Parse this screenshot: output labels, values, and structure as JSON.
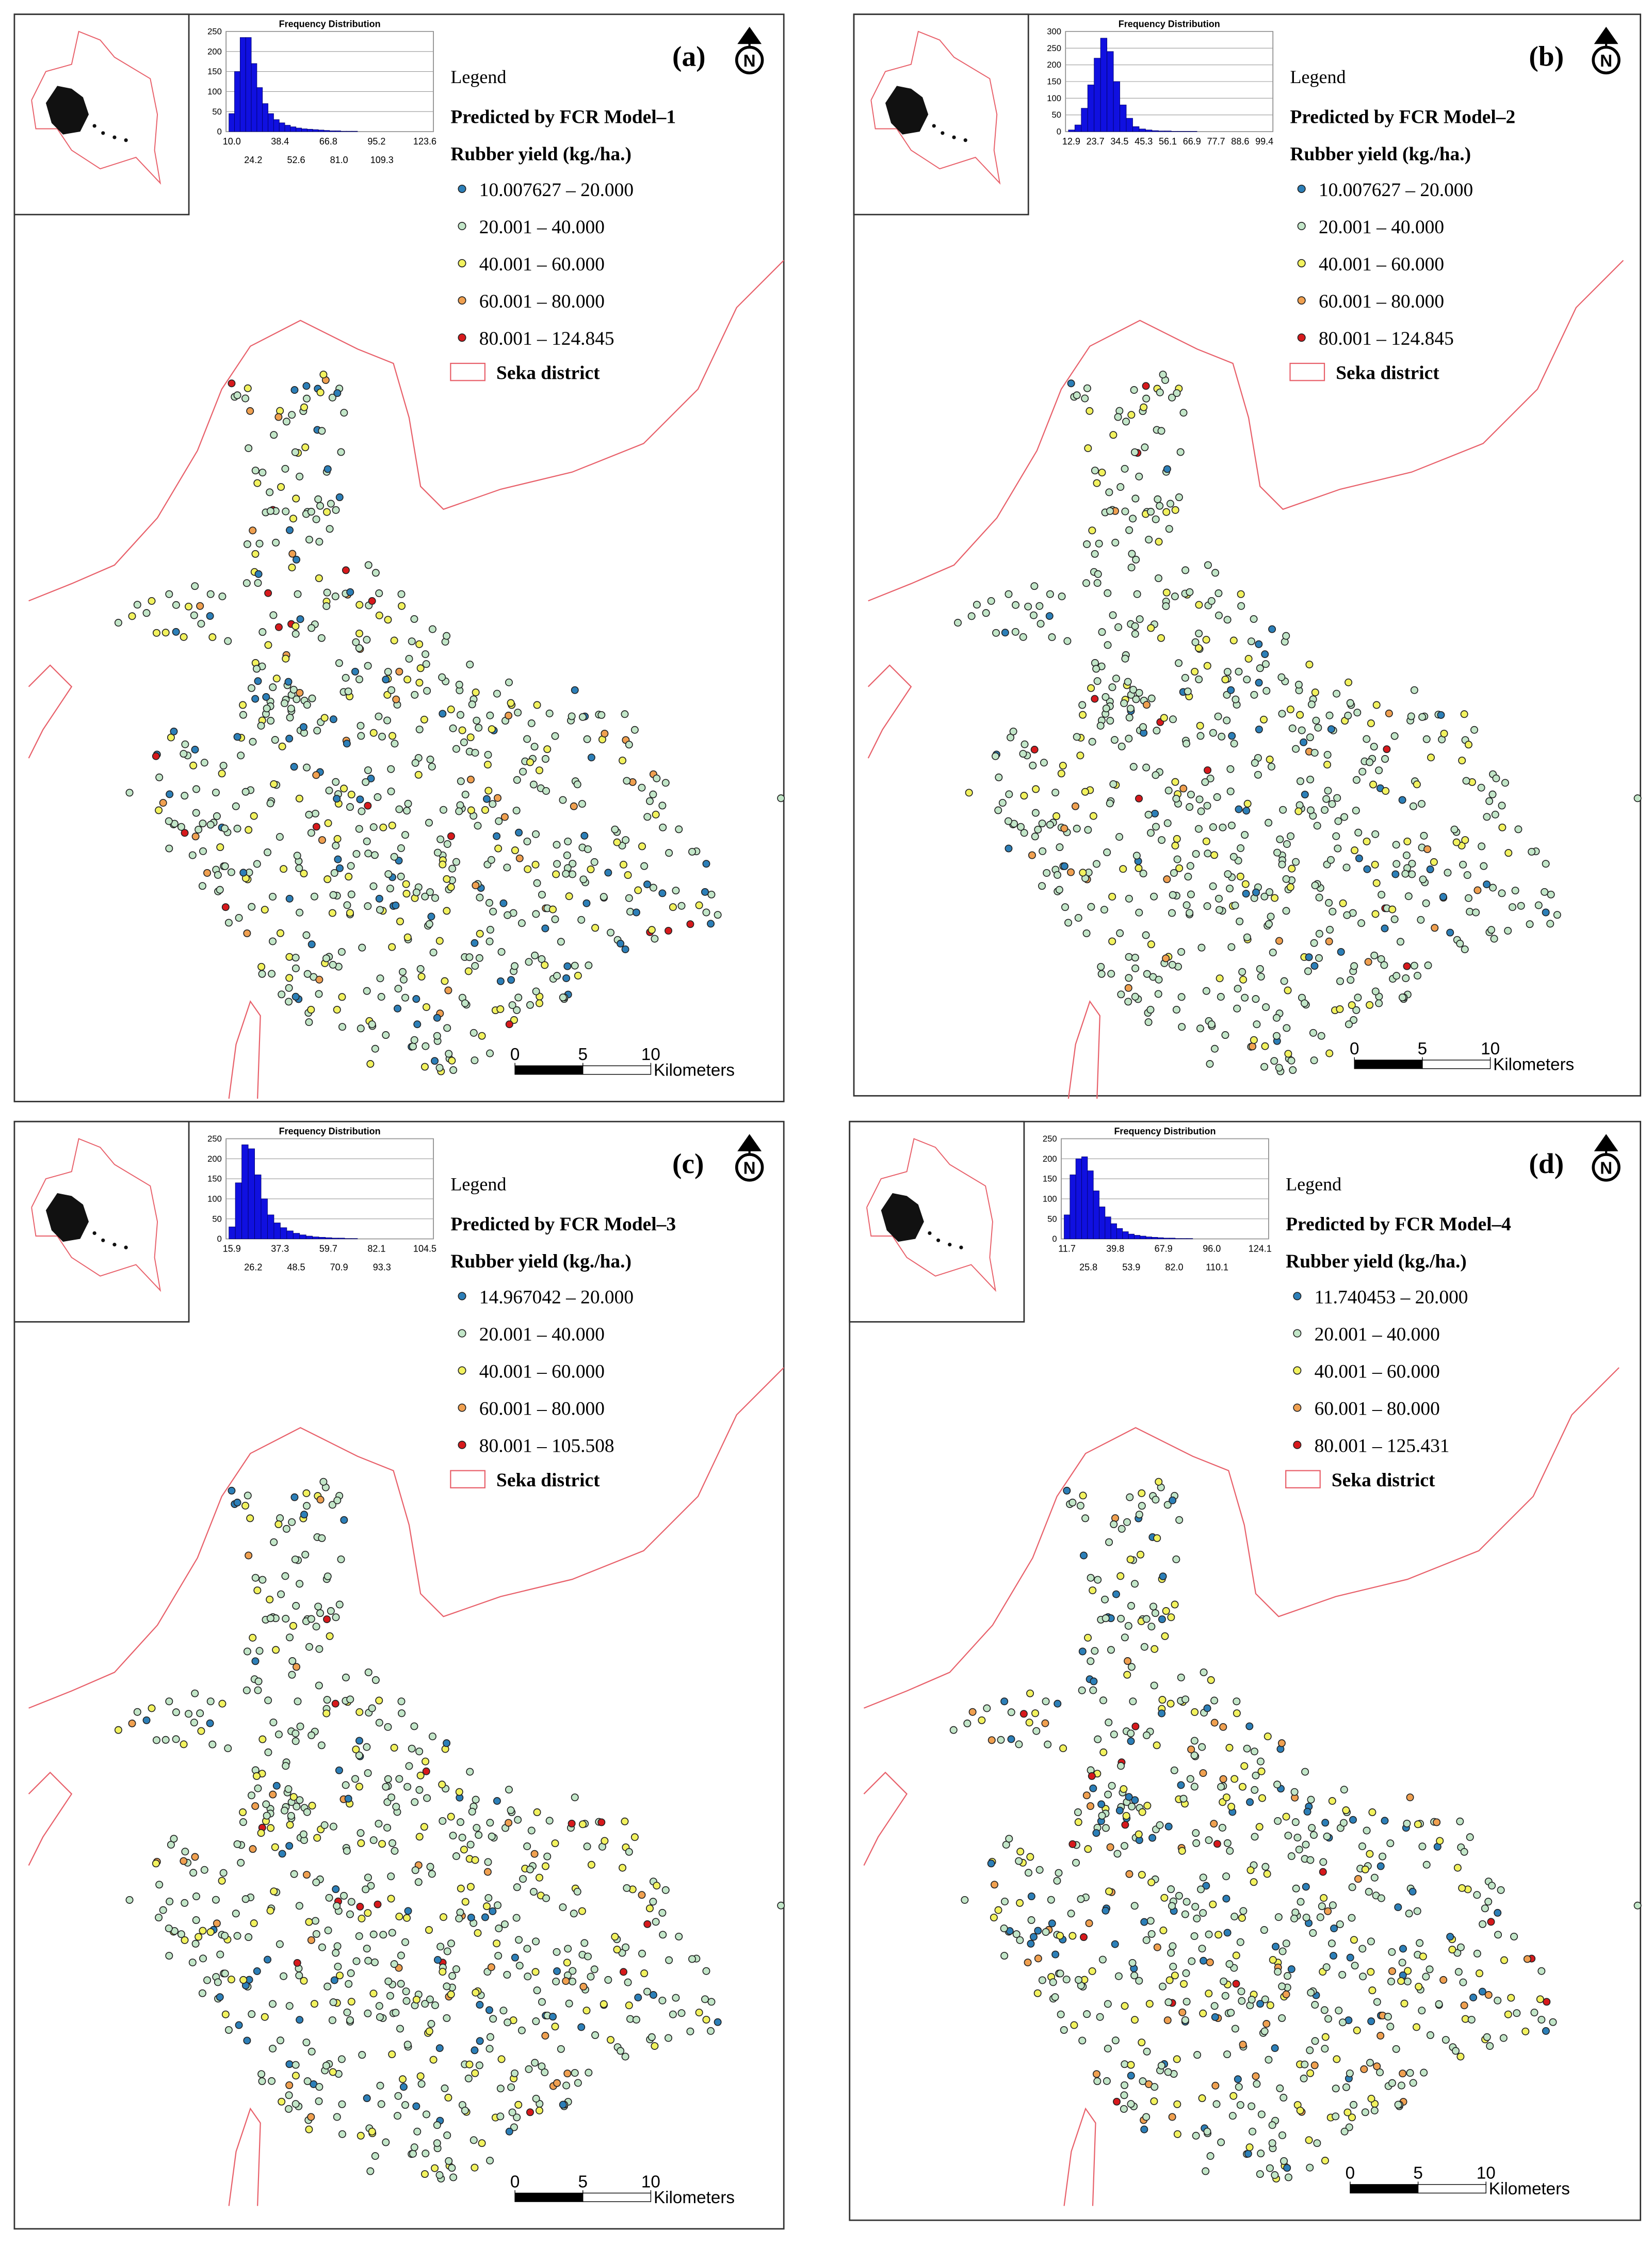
{
  "panels": [
    {
      "label": "(a)",
      "north": "N",
      "histogram": {
        "title": "Frequency Distribution",
        "yticks": [
          0,
          50,
          100,
          150,
          200,
          250
        ],
        "values": [
          45,
          150,
          235,
          235,
          170,
          110,
          70,
          45,
          30,
          22,
          16,
          12,
          9,
          7,
          6,
          5,
          4,
          3,
          2,
          2,
          1,
          1,
          1
        ],
        "xlabels_top": [
          "10.0",
          "38.4",
          "66.8",
          "95.2",
          "123.6"
        ],
        "xlabels_bottom": [
          "24.2",
          "52.6",
          "81.0",
          "109.3"
        ]
      },
      "legend": {
        "title": "Legend",
        "model": "Predicted by FCR Model–1",
        "variable": "Rubber yield (kg./ha.)",
        "classes": [
          {
            "label": "10.007627 – 20.000",
            "color": "#2c7fb8"
          },
          {
            "label": "20.001 – 40.000",
            "color": "#c2e6c8"
          },
          {
            "label": "40.001 – 60.000",
            "color": "#f2f25e"
          },
          {
            "label": "60.001 – 80.000",
            "color": "#f0a050"
          },
          {
            "label": "80.001 – 124.845",
            "color": "#d7191c"
          }
        ],
        "district": "Seka district"
      },
      "scale": {
        "ticks": [
          0,
          5,
          10
        ],
        "unit": "Kilometers"
      }
    },
    {
      "label": "(b)",
      "north": "N",
      "histogram": {
        "title": "Frequency Distribution",
        "yticks": [
          0,
          50,
          100,
          150,
          200,
          250,
          300
        ],
        "values": [
          5,
          20,
          70,
          140,
          220,
          280,
          240,
          150,
          80,
          40,
          15,
          8,
          5,
          3,
          2,
          2,
          1,
          1,
          1,
          1
        ],
        "xlabels_top": [
          "12.9",
          "23.7",
          "34.5",
          "45.3",
          "56.1",
          "66.9",
          "77.7",
          "88.6",
          "99.4"
        ]
      },
      "legend": {
        "title": "Legend",
        "model": "Predicted by FCR Model–2",
        "variable": "Rubber yield (kg./ha.)",
        "classes": [
          {
            "label": "10.007627 – 20.000",
            "color": "#2c7fb8"
          },
          {
            "label": "20.001 – 40.000",
            "color": "#c2e6c8"
          },
          {
            "label": "40.001 – 60.000",
            "color": "#f2f25e"
          },
          {
            "label": "60.001 – 80.000",
            "color": "#f0a050"
          },
          {
            "label": "80.001 – 124.845",
            "color": "#d7191c"
          }
        ],
        "district": "Seka district"
      },
      "scale": {
        "ticks": [
          0,
          5,
          10
        ],
        "unit": "Kilometers"
      }
    },
    {
      "label": "(c)",
      "north": "N",
      "histogram": {
        "title": "Frequency Distribution",
        "yticks": [
          0,
          50,
          100,
          150,
          200,
          250
        ],
        "values": [
          30,
          140,
          235,
          225,
          160,
          100,
          60,
          40,
          28,
          20,
          14,
          10,
          7,
          5,
          4,
          3,
          2,
          2,
          1,
          1
        ],
        "xlabels_top": [
          "15.9",
          "37.3",
          "59.7",
          "82.1",
          "104.5"
        ],
        "xlabels_bottom": [
          "26.2",
          "48.5",
          "70.9",
          "93.3"
        ]
      },
      "legend": {
        "title": "Legend",
        "model": "Predicted by FCR Model–3",
        "variable": "Rubber yield (kg./ha.)",
        "classes": [
          {
            "label": "14.967042 – 20.000",
            "color": "#2c7fb8"
          },
          {
            "label": "20.001 – 40.000",
            "color": "#c2e6c8"
          },
          {
            "label": "40.001 – 60.000",
            "color": "#f2f25e"
          },
          {
            "label": "60.001 – 80.000",
            "color": "#f0a050"
          },
          {
            "label": "80.001 – 105.508",
            "color": "#d7191c"
          }
        ],
        "district": "Seka district"
      },
      "scale": {
        "ticks": [
          0,
          5,
          10
        ],
        "unit": "Kilometers"
      }
    },
    {
      "label": "(d)",
      "north": "N",
      "histogram": {
        "title": "Frequency Distribution",
        "yticks": [
          0,
          50,
          100,
          150,
          200,
          250
        ],
        "values": [
          60,
          160,
          200,
          205,
          170,
          120,
          80,
          55,
          38,
          26,
          18,
          12,
          9,
          7,
          5,
          4,
          3,
          2,
          2,
          1,
          1,
          1
        ],
        "xlabels_top": [
          "11.7",
          "39.8",
          "67.9",
          "96.0",
          "124.1"
        ],
        "xlabels_bottom": [
          "25.8",
          "53.9",
          "82.0",
          "110.1"
        ]
      },
      "legend": {
        "title": "Legend",
        "model": "Predicted by FCR Model–4",
        "variable": "Rubber yield (kg./ha.)",
        "classes": [
          {
            "label": "11.740453 – 20.000",
            "color": "#2c7fb8"
          },
          {
            "label": "20.001 – 40.000",
            "color": "#c2e6c8"
          },
          {
            "label": "40.001 – 60.000",
            "color": "#f2f25e"
          },
          {
            "label": "60.001 – 80.000",
            "color": "#f0a050"
          },
          {
            "label": "80.001 – 125.431",
            "color": "#d7191c"
          }
        ],
        "district": "Seka district"
      },
      "scale": {
        "ticks": [
          0,
          5,
          10
        ],
        "unit": "Kilometers"
      }
    }
  ]
}
